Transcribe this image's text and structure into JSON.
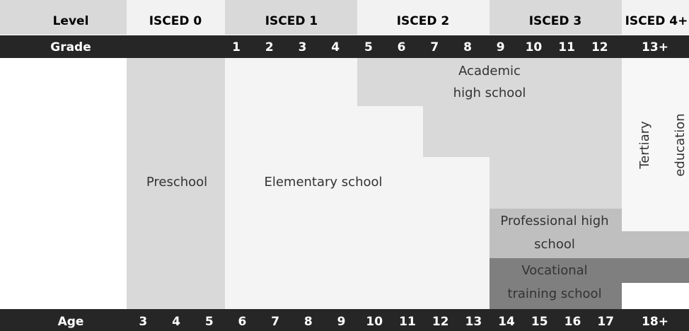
{
  "header": {
    "level_label": "Level",
    "levels": [
      "ISCED 0",
      "ISCED 1",
      "ISCED 2",
      "ISCED 3",
      "ISCED 4+"
    ],
    "grade_label": "Grade",
    "grades": [
      "1",
      "2",
      "3",
      "4",
      "5",
      "6",
      "7",
      "8",
      "9",
      "10",
      "11",
      "12",
      "13+"
    ],
    "age_label": "Age",
    "ages": [
      "3",
      "4",
      "5",
      "6",
      "7",
      "8",
      "9",
      "10",
      "11",
      "12",
      "13",
      "14",
      "15",
      "16",
      "17",
      "18+"
    ]
  },
  "programs": {
    "preschool": "Preschool",
    "elementary": "Elementary school",
    "academic": [
      "Academic",
      "high school"
    ],
    "tertiary": [
      "Tertiary",
      "education"
    ],
    "professional": [
      "Professional high",
      "school"
    ],
    "vocational": [
      "Vocational",
      "training school"
    ]
  }
}
